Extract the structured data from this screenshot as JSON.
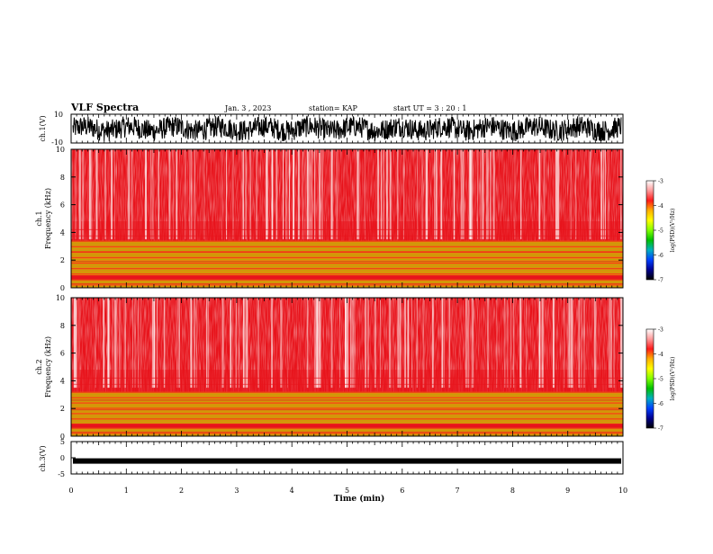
{
  "header": {
    "title": "VLF Spectra",
    "date": "Jan. 3 , 2023",
    "station": "station= KAP",
    "start_time": "start  UT =   3 : 20 : 1"
  },
  "colors": {
    "background": "#ffffff",
    "trace": "#000000",
    "spectrogram_base": "#e8141c",
    "spectrogram_light": "#ffffff",
    "band_yellow": "#f2e600",
    "band_green": "#6fd400"
  },
  "colorbar": {
    "label": "log(PSD)(V²/Hz)",
    "ticks": [
      "-3",
      "-4",
      "-5",
      "-6",
      "-7"
    ],
    "stops": [
      "#ffffff",
      "#ff9a9a",
      "#ff1a1a",
      "#ffb000",
      "#ffff00",
      "#80ff00",
      "#00c000",
      "#00b0c0",
      "#0040ff",
      "#000090",
      "#000000"
    ]
  },
  "chart_data": [
    {
      "type": "line",
      "name": "ch.1 waveform",
      "ylabel": "ch.1(V)",
      "ylim": [
        -10,
        10
      ],
      "yticks": [
        "10",
        "-10"
      ],
      "xlim": [
        0,
        10
      ],
      "grid": false
    },
    {
      "type": "heatmap",
      "name": "ch.1 spectrogram",
      "ylabel": "ch.1",
      "ylabel2": "Frequency (kHz)",
      "xlim": [
        0,
        10
      ],
      "ylim": [
        0,
        10
      ],
      "yticks": [
        "10",
        "8",
        "6",
        "4",
        "2",
        "0"
      ],
      "color_scale": [
        -7,
        -3
      ],
      "bands_khz": {
        "strong": [
          [
            0.0,
            0.6
          ],
          [
            0.9,
            3.4
          ]
        ],
        "medium": [
          [
            3.4,
            4.8
          ]
        ],
        "weak": [
          [
            4.8,
            10.0
          ]
        ]
      },
      "grid": false
    },
    {
      "type": "heatmap",
      "name": "ch.2 spectrogram",
      "ylabel": "ch.2",
      "ylabel2": "Frequency (kHz)",
      "xlim": [
        0,
        10
      ],
      "ylim": [
        0,
        10
      ],
      "yticks": [
        "10",
        "8",
        "6",
        "4",
        "2",
        "0"
      ],
      "color_scale": [
        -7,
        -3
      ],
      "bands_khz": {
        "strong": [
          [
            0.0,
            0.6
          ],
          [
            0.9,
            3.2
          ]
        ],
        "medium": [
          [
            3.2,
            4.8
          ]
        ],
        "weak": [
          [
            4.8,
            10.0
          ]
        ]
      },
      "grid": false
    },
    {
      "type": "line",
      "name": "ch.3 waveform",
      "ylabel": "ch.3(V)",
      "ylim": [
        -5,
        5
      ],
      "yticks": [
        "5",
        "0",
        "-5"
      ],
      "xlim": [
        0,
        10
      ],
      "xlabel": "Time (min)",
      "xticks": [
        "0",
        "1",
        "2",
        "3",
        "4",
        "5",
        "6",
        "7",
        "8",
        "9",
        "10"
      ],
      "trace_level_v": -1.0,
      "grid": false
    }
  ]
}
